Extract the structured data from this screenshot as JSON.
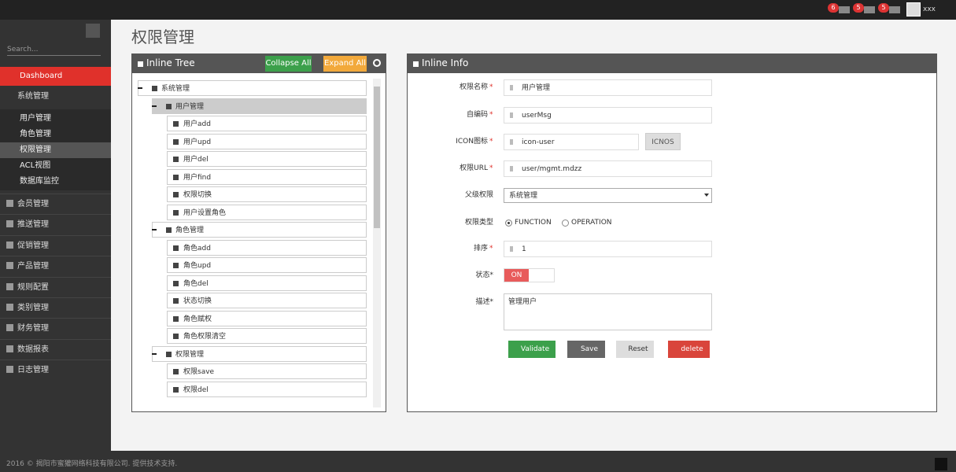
{
  "topbar": {
    "badges": [
      "6",
      "5",
      "5"
    ],
    "user": "xxx"
  },
  "sidebar": {
    "search": "Search...",
    "dashboard": "Dashboard",
    "system": "系统管理",
    "submenu": [
      "用户管理",
      "角色管理",
      "权限管理",
      "ACL视图",
      "数据库监控"
    ],
    "menu": [
      "会员管理",
      "推送管理",
      "促销管理",
      "产品管理",
      "规则配置",
      "类别管理",
      "财务管理",
      "数据报表",
      "日志管理"
    ]
  },
  "page": {
    "title": "权限管理"
  },
  "tree": {
    "title": "Inline Tree",
    "collapse": "Collapse All",
    "expand": "Expand All",
    "nodes": [
      {
        "label": "系统管理",
        "level": 0
      },
      {
        "label": "用户管理",
        "level": 1
      },
      {
        "label": "用户add",
        "level": 2
      },
      {
        "label": "用户upd",
        "level": 2
      },
      {
        "label": "用户del",
        "level": 2
      },
      {
        "label": "用户find",
        "level": 2
      },
      {
        "label": "权限切换",
        "level": 2
      },
      {
        "label": "用户设置角色",
        "level": 2
      },
      {
        "label": "角色管理",
        "level": 1
      },
      {
        "label": "角色add",
        "level": 2
      },
      {
        "label": "角色upd",
        "level": 2
      },
      {
        "label": "角色del",
        "level": 2
      },
      {
        "label": "状态切换",
        "level": 2
      },
      {
        "label": "角色赋权",
        "level": 2
      },
      {
        "label": "角色权限清空",
        "level": 2
      },
      {
        "label": "权限管理",
        "level": 1
      },
      {
        "label": "权限save",
        "level": 2
      },
      {
        "label": "权限del",
        "level": 2
      }
    ]
  },
  "info": {
    "title": "Inline Info",
    "fields": [
      {
        "label": "权限名称",
        "star": "*",
        "value": "用户管理"
      },
      {
        "label": "自编码",
        "star": "*",
        "value": "userMsg"
      },
      {
        "label": "ICON图标",
        "star": "*",
        "value": "icon-user",
        "button": "ICNOS"
      },
      {
        "label": "权限URL",
        "star": "*",
        "value": "user/mgmt.mdzz"
      },
      {
        "label": "父级权限",
        "value": "系统管理"
      },
      {
        "label": "权限类型",
        "options": [
          "FUNCTION",
          "OPERATION"
        ]
      },
      {
        "label": "排序",
        "star": "*",
        "value": "1"
      },
      {
        "label": "状态*",
        "value": "ON"
      },
      {
        "label": "描述*",
        "value": "管理用户"
      }
    ],
    "buttons": [
      "Validate",
      "Save",
      "Reset",
      "delete"
    ]
  },
  "footer": {
    "text": "2016 © 揭阳市蜜獾网络科技有限公司. 提供技术支持."
  }
}
